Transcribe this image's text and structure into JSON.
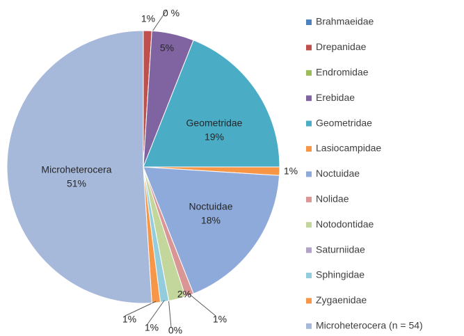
{
  "chart_data": {
    "type": "pie",
    "categories": [
      "Brahmaeidae",
      "Drepanidae",
      "Endromidae",
      "Erebidae",
      "Geometridae",
      "Lasiocampidae",
      "Noctuidae",
      "Nolidae",
      "Notodontidae",
      "Saturniidae",
      "Sphingidae",
      "Zygaenidae",
      "Microheterocera (n = 54)"
    ],
    "values": [
      0,
      1,
      0,
      5,
      19,
      1,
      18,
      1,
      2,
      0,
      1,
      1,
      51
    ],
    "value_labels": [
      null,
      "1%",
      "0 %",
      "5%",
      "19%",
      "1%",
      "18%",
      "1%",
      "2%",
      "0%",
      "1%",
      "1%",
      "51%"
    ],
    "slice_labels": [
      null,
      null,
      null,
      null,
      "Geometridae",
      null,
      "Noctuidae",
      null,
      null,
      null,
      null,
      null,
      "Microheterocera"
    ],
    "colors": [
      "#4f81bd",
      "#c0504d",
      "#9bbb59",
      "#8064a2",
      "#4bacc6",
      "#f79646",
      "#8eaadb",
      "#d99694",
      "#c3d69b",
      "#b3a2c7",
      "#93cddd",
      "#f79646",
      "#a7b9db"
    ],
    "legend": "right"
  }
}
